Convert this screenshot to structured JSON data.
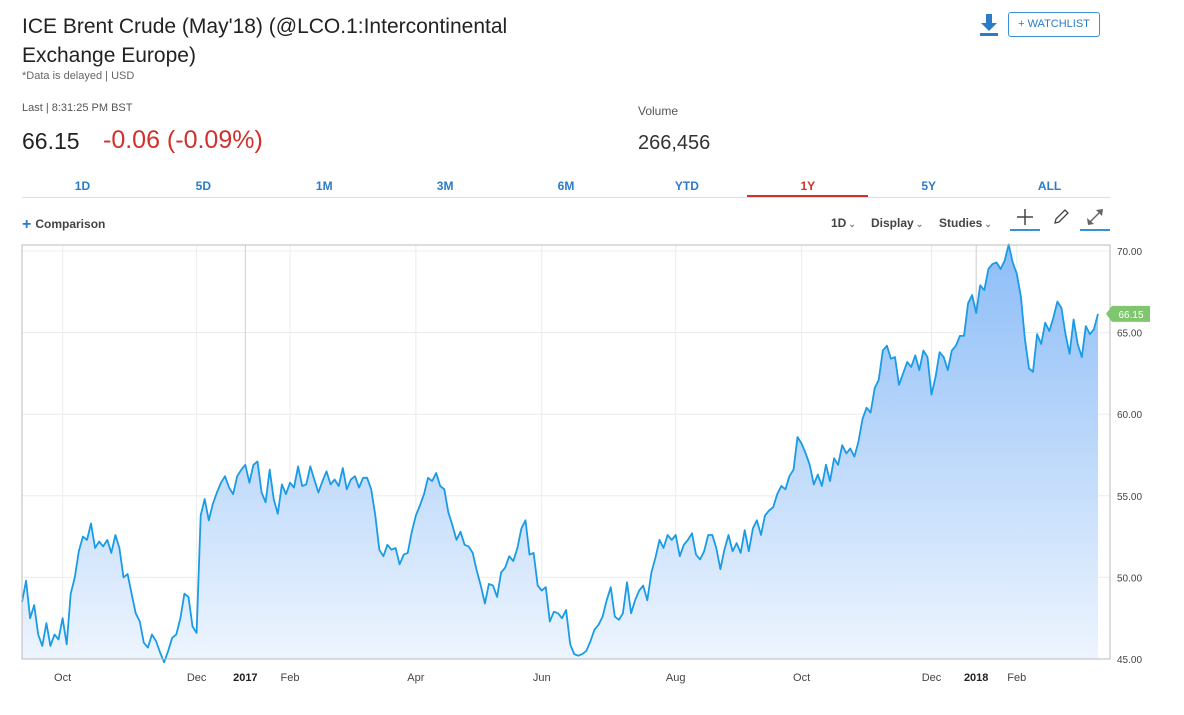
{
  "header": {
    "title": "ICE Brent Crude (May'18) (@LCO.1:Intercontinental Exchange Europe)",
    "note": "*Data is delayed | USD",
    "last_label": "Last | 8:31:25 PM BST",
    "price": "66.15",
    "change": "-0.06 (-0.09%)",
    "volume_label": "Volume",
    "volume": "266,456",
    "watchlist_label": "+ WATCHLIST"
  },
  "tabs": [
    {
      "label": "1D"
    },
    {
      "label": "5D"
    },
    {
      "label": "1M"
    },
    {
      "label": "3M"
    },
    {
      "label": "6M"
    },
    {
      "label": "YTD"
    },
    {
      "label": "1Y"
    },
    {
      "label": "5Y"
    },
    {
      "label": "ALL"
    }
  ],
  "active_tab": "1Y",
  "toolbar": {
    "comparison_label": "Comparison",
    "interval_label": "1D",
    "display_label": "Display",
    "studies_label": "Studies"
  },
  "colors": {
    "line": "#1a9be6",
    "fill_top": "#8dbdf7",
    "fill_bottom": "#eef5fe",
    "negative": "#d0312d",
    "accent": "#2b7bc8",
    "last_tag": "#7fc66e"
  },
  "chart_data": {
    "type": "area",
    "title": "ICE Brent Crude (May'18) 1Y",
    "xlabel": "",
    "ylabel": "",
    "ylim": [
      45,
      70
    ],
    "y_ticks": [
      "45.00",
      "50.00",
      "55.00",
      "60.00",
      "65.00",
      "70.00"
    ],
    "x_tick_labels": [
      "Oct",
      "Dec",
      "2017",
      "Feb",
      "Apr",
      "Jun",
      "Aug",
      "Oct",
      "Dec",
      "2018",
      "Feb"
    ],
    "x_tick_index": [
      10,
      43,
      55,
      66,
      97,
      128,
      161,
      192,
      224,
      235,
      245
    ],
    "last_value_label": "66.15",
    "series": [
      {
        "name": "LCO.1",
        "values": [
          48.5,
          49.8,
          47.5,
          48.3,
          46.5,
          45.8,
          47.2,
          45.8,
          46.5,
          46.2,
          47.5,
          45.9,
          49,
          50,
          51.6,
          52.5,
          52.3,
          53.3,
          51.8,
          52.2,
          51.9,
          52.3,
          51.5,
          52.6,
          51.8,
          50,
          50.2,
          49,
          47.8,
          47.3,
          46,
          45.7,
          46.5,
          46.1,
          45.4,
          44.8,
          45.5,
          46.3,
          46.5,
          47.5,
          49,
          48.8,
          47,
          46.6,
          53.8,
          54.8,
          53.5,
          54.5,
          55.2,
          55.8,
          56.2,
          55.5,
          55.1,
          56.2,
          56.6,
          56.9,
          55.8,
          56.9,
          57.1,
          55.2,
          54.6,
          56.6,
          54.8,
          53.9,
          55.7,
          55.1,
          55.8,
          55.5,
          56.8,
          55.6,
          55.7,
          56.8,
          56,
          55.2,
          55.9,
          56.5,
          55.7,
          56,
          55.6,
          56.7,
          55.4,
          56,
          56.2,
          55.5,
          56.1,
          56.1,
          55.4,
          53.8,
          51.7,
          51.3,
          52,
          51.7,
          51.8,
          50.8,
          51.4,
          51.5,
          52.8,
          53.8,
          54.4,
          55.1,
          56.1,
          55.9,
          56.4,
          55.6,
          55.4,
          54,
          53.2,
          52.3,
          52.8,
          52,
          51.9,
          51.5,
          50.4,
          49.5,
          48.4,
          49.6,
          49.5,
          48.8,
          50.3,
          50.6,
          51.3,
          51,
          51.8,
          53,
          53.5,
          51.4,
          51.5,
          49.5,
          49.2,
          49.4,
          47.3,
          47.9,
          47.8,
          47.5,
          48,
          45.9,
          45.3,
          45.2,
          45.3,
          45.5,
          46.1,
          46.8,
          47.1,
          47.6,
          48.6,
          49.4,
          47.6,
          47.4,
          47.8,
          49.7,
          47.8,
          48.6,
          49.2,
          49.5,
          48.6,
          50.3,
          51.2,
          52.3,
          51.8,
          52.6,
          52.3,
          52.6,
          51.3,
          52,
          52.3,
          52.7,
          51.4,
          51.1,
          51.6,
          52.6,
          52.6,
          51.8,
          50.5,
          51.7,
          52.6,
          51.6,
          52.1,
          51.5,
          52.9,
          51.6,
          53,
          53.5,
          52.6,
          53.8,
          54.1,
          54.3,
          55.1,
          55.6,
          55.4,
          56.2,
          56.6,
          58.6,
          58.2,
          57.6,
          56.9,
          55.7,
          56.3,
          55.6,
          56.9,
          55.9,
          57.3,
          56.9,
          58.1,
          57.6,
          57.9,
          57.4,
          58.3,
          59.7,
          60.4,
          60.1,
          61.6,
          62.1,
          63.9,
          64.2,
          63.4,
          63.5,
          61.8,
          62.5,
          63.2,
          62.9,
          63.6,
          62.7,
          63.9,
          63.5,
          61.2,
          62.3,
          63.8,
          63.5,
          62.7,
          63.9,
          64.2,
          64.8,
          64.8,
          66.8,
          67.3,
          66.2,
          67.9,
          67.6,
          68.9,
          69.2,
          69.3,
          68.9,
          69.4,
          70.4,
          69.3,
          68.6,
          67.2,
          64.6,
          62.8,
          62.6,
          64.9,
          64.3,
          65.6,
          65.1,
          65.9,
          66.9,
          66.5,
          64.9,
          63.7,
          65.8,
          64.3,
          63.5,
          65.4,
          64.9,
          65.2,
          66.15
        ]
      }
    ]
  }
}
